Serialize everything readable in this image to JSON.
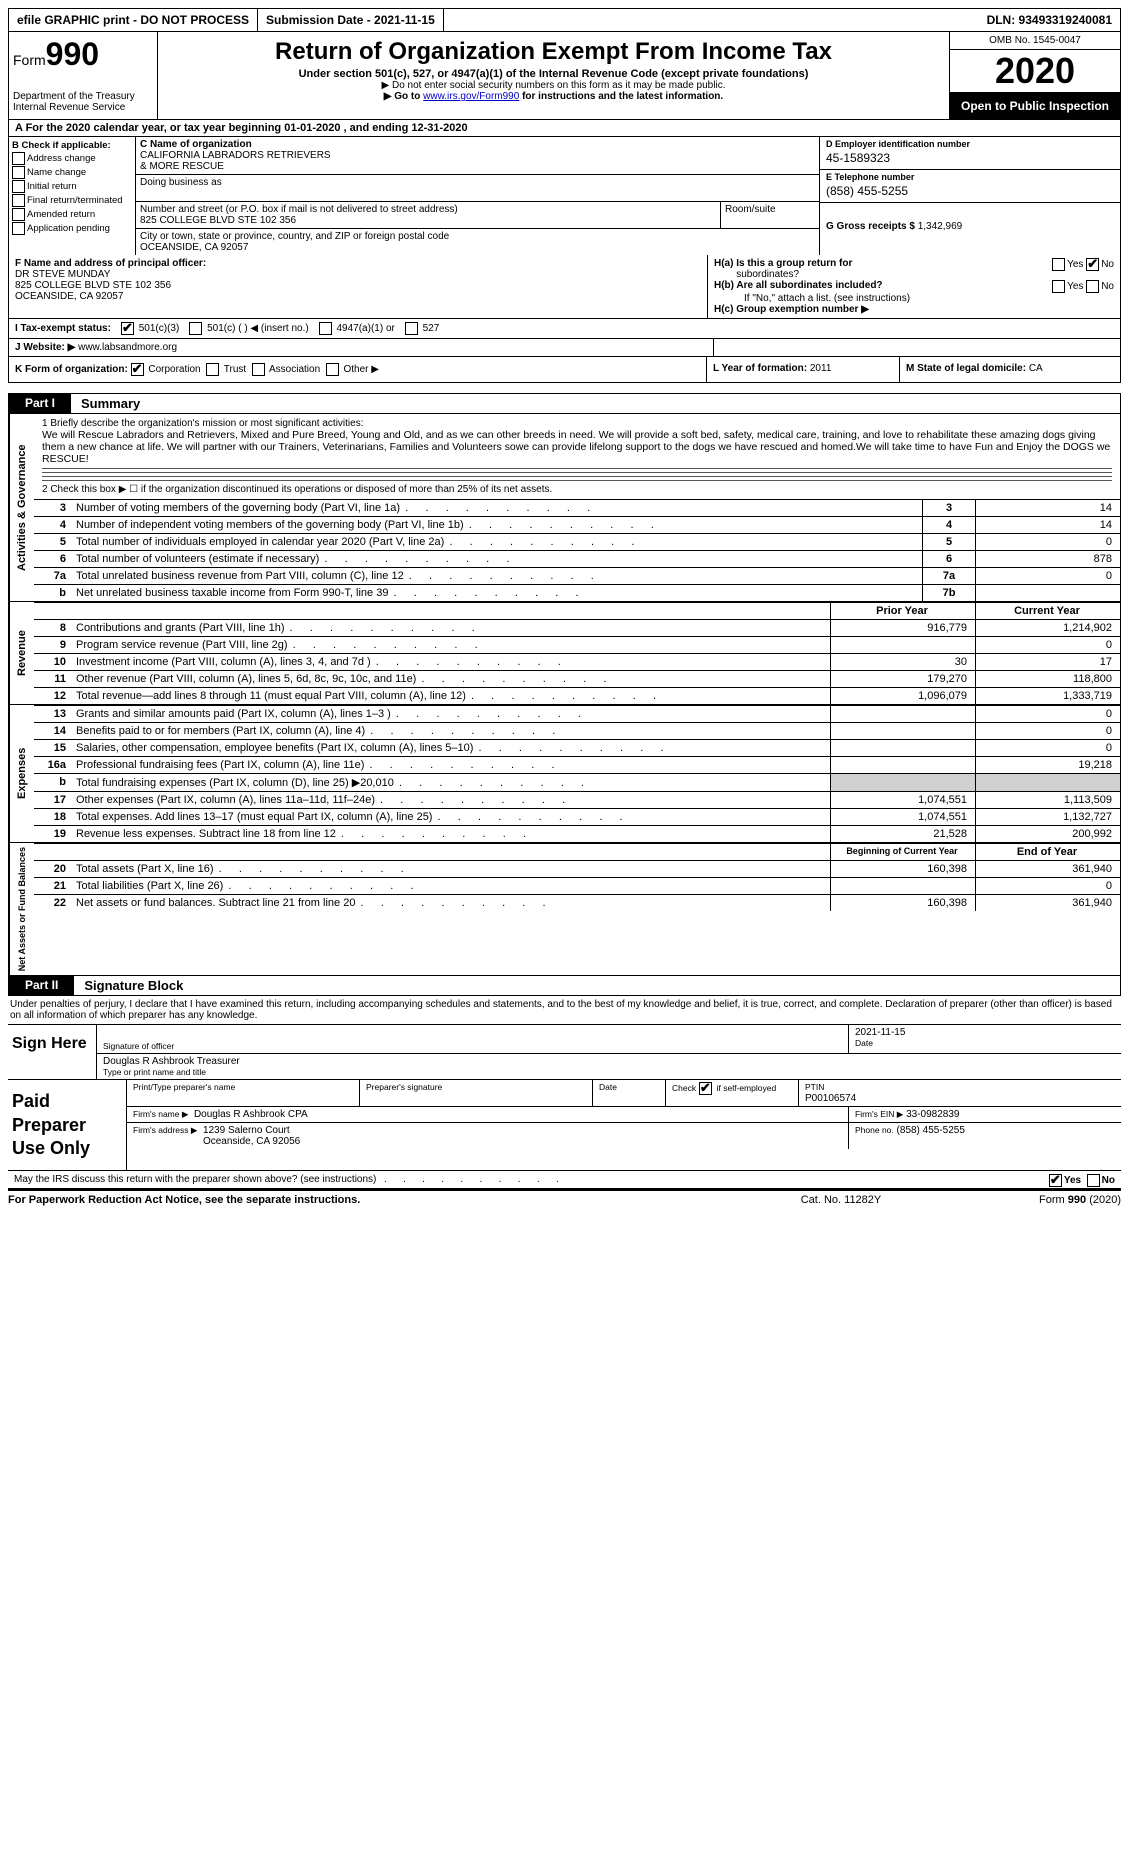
{
  "topbar": {
    "efile": "efile GRAPHIC print - DO NOT PROCESS",
    "submission": "Submission Date - 2021-11-15",
    "dln": "DLN: 93493319240081"
  },
  "header": {
    "form_label": "Form",
    "form_num": "990",
    "dept": "Department of the Treasury\nInternal Revenue Service",
    "title": "Return of Organization Exempt From Income Tax",
    "sub": "Under section 501(c), 527, or 4947(a)(1) of the Internal Revenue Code (except private foundations)",
    "note1": "▶ Do not enter social security numbers on this form as it may be made public.",
    "note2_a": "▶ Go to ",
    "note2_link": "www.irs.gov/Form990",
    "note2_b": " for instructions and the latest information.",
    "omb": "OMB No. 1545-0047",
    "year": "2020",
    "inspect": "Open to Public Inspection"
  },
  "row_a": "A For the 2020 calendar year, or tax year beginning 01-01-2020  , and ending 12-31-2020",
  "col_b": {
    "hdr": "B Check if applicable:",
    "items": [
      "Address change",
      "Name change",
      "Initial return",
      "Final return/terminated",
      "Amended return",
      "Application pending"
    ]
  },
  "col_c": {
    "name_lbl": "C Name of organization",
    "name": "CALIFORNIA LABRADORS RETRIEVERS\n& MORE RESCUE",
    "dba_lbl": "Doing business as",
    "dba": "",
    "addr_lbl": "Number and street (or P.O. box if mail is not delivered to street address)",
    "addr": "825 COLLEGE BLVD STE 102 356",
    "room_lbl": "Room/suite",
    "city_lbl": "City or town, state or province, country, and ZIP or foreign postal code",
    "city": "OCEANSIDE, CA  92057"
  },
  "col_d": {
    "ein_lbl": "D Employer identification number",
    "ein": "45-1589323",
    "tel_lbl": "E Telephone number",
    "tel": "(858) 455-5255",
    "gross_lbl": "G Gross receipts $",
    "gross": "1,342,969"
  },
  "f": {
    "lbl": "F Name and address of principal officer:",
    "name": "DR STEVE MUNDAY",
    "addr1": "825 COLLEGE BLVD STE 102 356",
    "addr2": "OCEANSIDE, CA  92057"
  },
  "h": {
    "a": "H(a)  Is this a group return for",
    "a2": "subordinates?",
    "b": "H(b)  Are all subordinates included?",
    "b2": "If \"No,\" attach a list. (see instructions)",
    "c": "H(c)  Group exemption number ▶",
    "yes": "Yes",
    "no": "No"
  },
  "i": {
    "lbl": "I  Tax-exempt status:",
    "o1": "501(c)(3)",
    "o2": "501(c) (  ) ◀ (insert no.)",
    "o3": "4947(a)(1) or",
    "o4": "527"
  },
  "j": {
    "lbl": "J Website: ▶",
    "val": "www.labsandmore.org"
  },
  "k": {
    "lbl": "K Form of organization:",
    "o1": "Corporation",
    "o2": "Trust",
    "o3": "Association",
    "o4": "Other ▶"
  },
  "l": {
    "lbl": "L Year of formation:",
    "val": "2011"
  },
  "m": {
    "lbl": "M State of legal domicile:",
    "val": "CA"
  },
  "part1": {
    "tag": "Part I",
    "title": "Summary"
  },
  "mission": {
    "q1": "1  Briefly describe the organization's mission or most significant activities:",
    "text": "We will Rescue Labradors and Retrievers, Mixed and Pure Breed, Young and Old, and as we can other breeds in need. We will provide a soft bed, safety, medical care, training, and love to rehabilitate these amazing dogs giving them a new chance at life. We will partner with our Trainers, Veterinarians, Families and Volunteers sowe can provide lifelong support to the dogs we have rescued and homed.We will take time to have Fun and Enjoy the DOGS we RESCUE!",
    "q2": "2  Check this box ▶ ☐ if the organization discontinued its operations or disposed of more than 25% of its net assets."
  },
  "sides": {
    "ag": "Activities & Governance",
    "rev": "Revenue",
    "exp": "Expenses",
    "net": "Net Assets or Fund Balances"
  },
  "lines_ag": [
    {
      "n": "3",
      "d": "Number of voting members of the governing body (Part VI, line 1a)",
      "box": "3",
      "v": "14"
    },
    {
      "n": "4",
      "d": "Number of independent voting members of the governing body (Part VI, line 1b)",
      "box": "4",
      "v": "14"
    },
    {
      "n": "5",
      "d": "Total number of individuals employed in calendar year 2020 (Part V, line 2a)",
      "box": "5",
      "v": "0"
    },
    {
      "n": "6",
      "d": "Total number of volunteers (estimate if necessary)",
      "box": "6",
      "v": "878"
    },
    {
      "n": "7a",
      "d": "Total unrelated business revenue from Part VIII, column (C), line 12",
      "box": "7a",
      "v": "0"
    },
    {
      "n": "b",
      "d": "Net unrelated business taxable income from Form 990-T, line 39",
      "box": "7b",
      "v": ""
    }
  ],
  "hdr_py": "Prior Year",
  "hdr_cy": "Current Year",
  "lines_rev": [
    {
      "n": "8",
      "d": "Contributions and grants (Part VIII, line 1h)",
      "py": "916,779",
      "cy": "1,214,902"
    },
    {
      "n": "9",
      "d": "Program service revenue (Part VIII, line 2g)",
      "py": "",
      "cy": "0"
    },
    {
      "n": "10",
      "d": "Investment income (Part VIII, column (A), lines 3, 4, and 7d )",
      "py": "30",
      "cy": "17"
    },
    {
      "n": "11",
      "d": "Other revenue (Part VIII, column (A), lines 5, 6d, 8c, 9c, 10c, and 11e)",
      "py": "179,270",
      "cy": "118,800"
    },
    {
      "n": "12",
      "d": "Total revenue—add lines 8 through 11 (must equal Part VIII, column (A), line 12)",
      "py": "1,096,079",
      "cy": "1,333,719"
    }
  ],
  "lines_exp": [
    {
      "n": "13",
      "d": "Grants and similar amounts paid (Part IX, column (A), lines 1–3 )",
      "py": "",
      "cy": "0"
    },
    {
      "n": "14",
      "d": "Benefits paid to or for members (Part IX, column (A), line 4)",
      "py": "",
      "cy": "0"
    },
    {
      "n": "15",
      "d": "Salaries, other compensation, employee benefits (Part IX, column (A), lines 5–10)",
      "py": "",
      "cy": "0"
    },
    {
      "n": "16a",
      "d": "Professional fundraising fees (Part IX, column (A), line 11e)",
      "py": "",
      "cy": "19,218"
    },
    {
      "n": "b",
      "d": "Total fundraising expenses (Part IX, column (D), line 25) ▶20,010",
      "py": "shade",
      "cy": "shade"
    },
    {
      "n": "17",
      "d": "Other expenses (Part IX, column (A), lines 11a–11d, 11f–24e)",
      "py": "1,074,551",
      "cy": "1,113,509"
    },
    {
      "n": "18",
      "d": "Total expenses. Add lines 13–17 (must equal Part IX, column (A), line 25)",
      "py": "1,074,551",
      "cy": "1,132,727"
    },
    {
      "n": "19",
      "d": "Revenue less expenses. Subtract line 18 from line 12",
      "py": "21,528",
      "cy": "200,992"
    }
  ],
  "hdr_by": "Beginning of Current Year",
  "hdr_ey": "End of Year",
  "lines_net": [
    {
      "n": "20",
      "d": "Total assets (Part X, line 16)",
      "py": "160,398",
      "cy": "361,940"
    },
    {
      "n": "21",
      "d": "Total liabilities (Part X, line 26)",
      "py": "",
      "cy": "0"
    },
    {
      "n": "22",
      "d": "Net assets or fund balances. Subtract line 21 from line 20",
      "py": "160,398",
      "cy": "361,940"
    }
  ],
  "part2": {
    "tag": "Part II",
    "title": "Signature Block"
  },
  "sig": {
    "intro": "Under penalties of perjury, I declare that I have examined this return, including accompanying schedules and statements, and to the best of my knowledge and belief, it is true, correct, and complete. Declaration of preparer (other than officer) is based on all information of which preparer has any knowledge.",
    "sign_here": "Sign Here",
    "sig_officer": "Signature of officer",
    "date": "Date",
    "date_val": "2021-11-15",
    "name": "Douglas R Ashbrook  Treasurer",
    "name_lbl": "Type or print name and title",
    "paid": "Paid Preparer Use Only",
    "prep_name_lbl": "Print/Type preparer's name",
    "prep_sig_lbl": "Preparer's signature",
    "prep_date_lbl": "Date",
    "check_lbl": "Check",
    "self_emp": "if self-employed",
    "ptin_lbl": "PTIN",
    "ptin": "P00106574",
    "firm_name_lbl": "Firm's name      ▶",
    "firm_name": "Douglas R Ashbrook CPA",
    "firm_ein_lbl": "Firm's EIN ▶",
    "firm_ein": "33-0982839",
    "firm_addr_lbl": "Firm's address ▶",
    "firm_addr": "1239 Salerno Court\nOceanside, CA  92056",
    "phone_lbl": "Phone no.",
    "phone": "(858) 455-5255",
    "irs_q": "May the IRS discuss this return with the preparer shown above? (see instructions)"
  },
  "footer": {
    "left": "For Paperwork Reduction Act Notice, see the separate instructions.",
    "mid": "Cat. No. 11282Y",
    "right": "Form 990 (2020)"
  }
}
